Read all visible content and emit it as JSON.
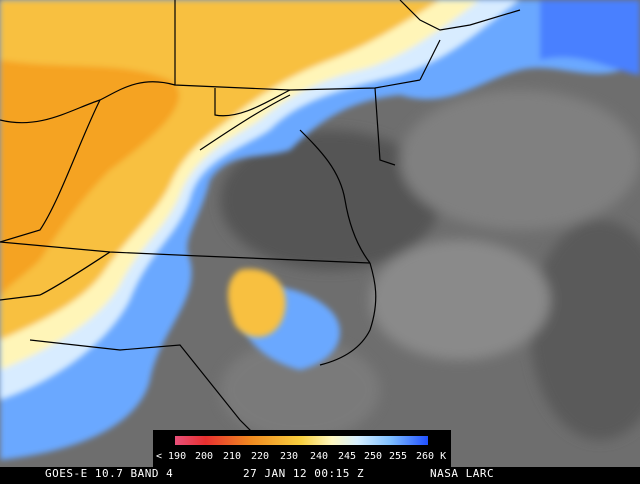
{
  "colorbar": {
    "labels": [
      "< 190",
      "200",
      "210",
      "220",
      "230",
      "240",
      "245",
      "250",
      "255",
      "260 K"
    ]
  },
  "footer": {
    "satellite": "GOES-E 10.7 BAND 4",
    "timestamp": "27 JAN 12 00:15 Z",
    "source": "NASA LARC"
  }
}
